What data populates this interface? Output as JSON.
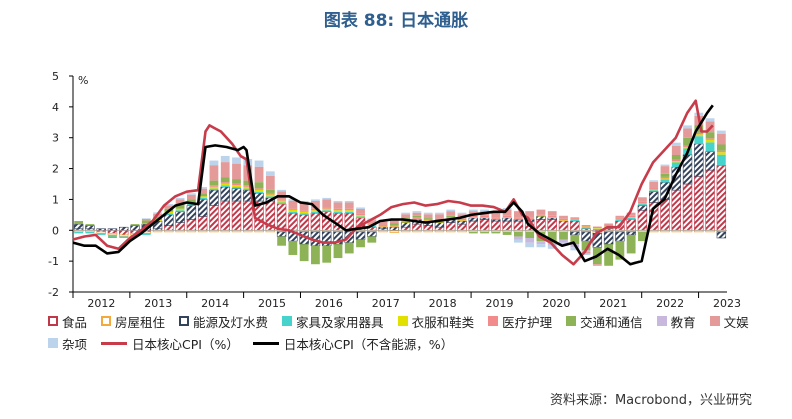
{
  "title": "图表 88: 日本通胀",
  "source": "资料来源：Macrobond，兴业研究",
  "chart_data": {
    "type": "bar",
    "stacked": true,
    "y_unit_label": "%",
    "ylim": [
      -2,
      5
    ],
    "yticks": [
      -2,
      -1,
      0,
      1,
      2,
      3,
      4,
      5
    ],
    "x_tick_labels": [
      "2012",
      "2013",
      "2014",
      "2015",
      "2016",
      "2017",
      "2018",
      "2019",
      "2020",
      "2021",
      "2022",
      "2023"
    ],
    "grid": false,
    "legend_position": "bottom",
    "series": [
      {
        "name": "食品",
        "color": "#c0394b",
        "style": "hatched",
        "values": [
          0.05,
          0.05,
          -0.05,
          -0.1,
          -0.15,
          -0.1,
          -0.05,
          0.05,
          0.15,
          0.25,
          0.35,
          0.45,
          0.8,
          0.95,
          0.95,
          0.95,
          0.95,
          0.95,
          0.85,
          0.55,
          0.5,
          0.55,
          0.6,
          0.55,
          0.55,
          0.4,
          0.1,
          0.05,
          -0.02,
          0.1,
          0.2,
          0.15,
          0.1,
          0.25,
          0.2,
          0.3,
          0.35,
          0.3,
          0.3,
          0.3,
          0.3,
          0.35,
          0.35,
          0.3,
          0.3,
          0.05,
          -0.05,
          0.05,
          0.3,
          0.35,
          0.65,
          0.9,
          1.0,
          1.3,
          1.5,
          1.75,
          1.95,
          2.1
        ]
      },
      {
        "name": "房屋租住",
        "color": "#f4a93c",
        "style": "outline",
        "values": [
          -0.05,
          -0.05,
          -0.05,
          -0.05,
          -0.05,
          -0.05,
          -0.05,
          -0.05,
          -0.05,
          -0.05,
          -0.05,
          -0.05,
          -0.05,
          -0.05,
          -0.05,
          -0.05,
          -0.05,
          -0.05,
          -0.05,
          -0.05,
          -0.05,
          -0.05,
          -0.05,
          -0.05,
          -0.05,
          -0.05,
          -0.05,
          -0.05,
          -0.05,
          -0.05,
          -0.05,
          -0.05,
          -0.05,
          -0.05,
          -0.05,
          -0.05,
          -0.05,
          -0.05,
          -0.05,
          -0.05,
          -0.05,
          -0.05,
          -0.05,
          -0.05,
          -0.05,
          -0.05,
          -0.05,
          -0.05,
          -0.05,
          -0.05,
          -0.05,
          -0.05,
          -0.05,
          -0.05,
          -0.05,
          -0.05,
          -0.05,
          -0.05
        ]
      },
      {
        "name": "能源及灯水费",
        "color": "#33435c",
        "style": "hatched",
        "values": [
          0.15,
          0.1,
          0.05,
          0.05,
          0.1,
          0.15,
          0.2,
          0.25,
          0.35,
          0.35,
          0.45,
          0.55,
          0.5,
          0.45,
          0.4,
          0.35,
          0.25,
          0.1,
          -0.15,
          -0.3,
          -0.4,
          -0.45,
          -0.45,
          -0.4,
          -0.35,
          -0.25,
          -0.15,
          0.05,
          0.1,
          0.15,
          0.15,
          0.15,
          0.15,
          0.1,
          0.1,
          0.1,
          0.05,
          0.05,
          0.1,
          0.05,
          0.05,
          0.1,
          0.05,
          0.0,
          -0.1,
          -0.3,
          -0.45,
          -0.4,
          -0.3,
          -0.1,
          0.15,
          0.35,
          0.55,
          0.75,
          0.95,
          1.05,
          0.6,
          -0.2
        ]
      },
      {
        "name": "家具及家用器具",
        "color": "#46d3cb",
        "style": "solid",
        "values": [
          -0.05,
          -0.05,
          -0.05,
          -0.05,
          -0.05,
          -0.05,
          -0.05,
          0.0,
          0.05,
          0.05,
          0.05,
          0.05,
          0.05,
          0.05,
          0.05,
          0.05,
          0.05,
          0.05,
          0.05,
          0.05,
          0.05,
          0.05,
          0.05,
          0.05,
          0.05,
          0.05,
          0.05,
          0.0,
          0.0,
          0.0,
          0.0,
          0.0,
          0.0,
          0.0,
          0.0,
          0.0,
          0.0,
          0.0,
          0.0,
          0.0,
          0.0,
          0.0,
          0.0,
          0.0,
          0.05,
          0.05,
          0.05,
          0.05,
          0.05,
          0.05,
          0.05,
          0.05,
          0.1,
          0.15,
          0.2,
          0.25,
          0.3,
          0.35
        ]
      },
      {
        "name": "衣服和鞋类",
        "color": "#e2e000",
        "style": "solid",
        "values": [
          0.0,
          0.0,
          0.0,
          0.0,
          0.0,
          0.0,
          0.02,
          0.03,
          0.05,
          0.05,
          0.05,
          0.05,
          0.06,
          0.06,
          0.06,
          0.06,
          0.06,
          0.06,
          0.06,
          0.06,
          0.05,
          0.05,
          0.05,
          0.05,
          0.05,
          0.04,
          0.03,
          0.02,
          0.02,
          0.02,
          0.02,
          0.02,
          0.02,
          0.02,
          0.02,
          0.02,
          0.02,
          0.02,
          0.02,
          0.02,
          0.02,
          0.02,
          0.02,
          0.02,
          0.02,
          0.02,
          0.02,
          0.02,
          0.02,
          0.02,
          0.02,
          0.02,
          0.03,
          0.04,
          0.05,
          0.06,
          0.08,
          0.08
        ]
      },
      {
        "name": "医疗护理",
        "color": "#f28c8c",
        "style": "solid",
        "values": [
          0.0,
          0.0,
          0.0,
          0.0,
          0.0,
          0.0,
          0.0,
          0.0,
          0.0,
          0.0,
          0.0,
          0.0,
          0.05,
          0.05,
          0.05,
          0.05,
          0.05,
          0.05,
          0.05,
          0.05,
          0.05,
          0.05,
          0.05,
          0.05,
          0.05,
          0.05,
          0.05,
          0.05,
          0.05,
          0.05,
          0.05,
          0.05,
          0.05,
          0.05,
          0.05,
          0.05,
          0.05,
          0.05,
          0.05,
          0.05,
          0.05,
          0.05,
          0.05,
          0.05,
          0.05,
          0.05,
          0.05,
          0.05,
          0.05,
          0.05,
          0.05,
          0.05,
          0.05,
          0.05,
          0.05,
          0.05,
          0.05,
          0.05
        ]
      },
      {
        "name": "交通和通信",
        "color": "#8db356",
        "style": "solid",
        "values": [
          0.1,
          0.05,
          0.0,
          -0.05,
          0.0,
          0.05,
          0.1,
          0.1,
          0.1,
          0.15,
          0.1,
          0.1,
          0.15,
          0.15,
          0.15,
          0.15,
          0.2,
          0.1,
          -0.3,
          -0.45,
          -0.55,
          -0.6,
          -0.55,
          -0.45,
          -0.35,
          -0.25,
          -0.2,
          0.0,
          0.05,
          0.1,
          0.05,
          0.05,
          0.05,
          0.05,
          0.0,
          -0.05,
          -0.05,
          -0.05,
          -0.1,
          -0.15,
          -0.2,
          -0.3,
          -0.35,
          -0.25,
          -0.3,
          -0.3,
          -0.55,
          -0.7,
          -0.6,
          -0.6,
          -0.3,
          0.0,
          0.1,
          0.15,
          0.25,
          0.25,
          0.2,
          0.2
        ]
      },
      {
        "name": "教育",
        "color": "#c9b8dd",
        "style": "solid",
        "values": [
          0.0,
          0.0,
          0.0,
          0.0,
          0.0,
          0.0,
          0.0,
          0.0,
          0.0,
          0.0,
          0.0,
          0.0,
          0.0,
          0.0,
          0.0,
          0.0,
          0.0,
          0.0,
          0.0,
          0.0,
          0.0,
          0.0,
          0.0,
          0.0,
          0.0,
          0.0,
          0.0,
          0.0,
          0.0,
          0.0,
          0.0,
          0.0,
          0.0,
          0.0,
          0.0,
          0.0,
          0.0,
          0.0,
          0.0,
          -0.1,
          -0.15,
          -0.1,
          -0.1,
          -0.1,
          -0.1,
          -0.05,
          0.0,
          0.0,
          0.0,
          0.0,
          0.0,
          0.0,
          0.0,
          0.0,
          0.0,
          0.0,
          0.0,
          0.0
        ]
      },
      {
        "name": "文娱",
        "color": "#e59a9a",
        "style": "solid",
        "values": [
          0.0,
          0.0,
          0.0,
          0.0,
          0.0,
          0.0,
          0.05,
          0.1,
          0.1,
          0.15,
          0.15,
          0.15,
          0.5,
          0.5,
          0.5,
          0.5,
          0.5,
          0.45,
          0.25,
          0.25,
          0.25,
          0.25,
          0.25,
          0.2,
          0.2,
          0.15,
          0.1,
          0.1,
          0.1,
          0.1,
          0.1,
          0.1,
          0.15,
          0.15,
          0.15,
          0.15,
          0.15,
          0.15,
          0.2,
          0.2,
          0.2,
          0.15,
          0.15,
          0.1,
          0.0,
          -0.05,
          -0.05,
          0.05,
          0.05,
          0.1,
          0.15,
          0.2,
          0.25,
          0.3,
          0.3,
          0.3,
          0.35,
          0.35
        ]
      },
      {
        "name": "杂项",
        "color": "#bcd3ec",
        "style": "solid",
        "values": [
          0.0,
          0.0,
          0.0,
          0.0,
          0.0,
          0.0,
          0.02,
          0.05,
          0.05,
          0.05,
          0.05,
          0.05,
          0.15,
          0.2,
          0.2,
          0.2,
          0.2,
          0.15,
          0.05,
          0.05,
          0.05,
          0.05,
          0.05,
          0.05,
          0.05,
          0.05,
          0.05,
          0.05,
          0.05,
          0.05,
          0.05,
          0.05,
          0.05,
          0.05,
          0.05,
          0.05,
          0.05,
          0.05,
          0.05,
          -0.1,
          -0.15,
          -0.1,
          -0.1,
          -0.1,
          -0.1,
          -0.05,
          0.0,
          0.0,
          0.0,
          0.0,
          0.0,
          0.05,
          0.05,
          0.1,
          0.1,
          0.1,
          0.1,
          0.1
        ]
      }
    ],
    "lines": [
      {
        "name": "日本核心CPI（%）",
        "color": "#c73b4a",
        "x": [
          2012.0,
          2012.2,
          2012.4,
          2012.6,
          2012.8,
          2013.0,
          2013.2,
          2013.4,
          2013.6,
          2013.8,
          2014.0,
          2014.2,
          2014.33,
          2014.4,
          2014.5,
          2014.6,
          2014.8,
          2014.95,
          2015.05,
          2015.2,
          2015.4,
          2015.6,
          2015.8,
          2016.0,
          2016.2,
          2016.4,
          2016.6,
          2016.8,
          2017.0,
          2017.2,
          2017.4,
          2017.6,
          2017.8,
          2018.0,
          2018.2,
          2018.4,
          2018.6,
          2018.8,
          2019.0,
          2019.2,
          2019.4,
          2019.6,
          2019.75,
          2019.9,
          2020.0,
          2020.2,
          2020.4,
          2020.6,
          2020.8,
          2021.0,
          2021.2,
          2021.4,
          2021.6,
          2021.8,
          2022.0,
          2022.2,
          2022.4,
          2022.6,
          2022.8,
          2022.95,
          2023.05,
          2023.15,
          2023.25
        ],
        "y": [
          -0.3,
          -0.2,
          -0.15,
          -0.5,
          -0.6,
          -0.25,
          0.0,
          0.3,
          0.8,
          1.1,
          1.25,
          1.3,
          3.2,
          3.4,
          3.3,
          3.2,
          2.8,
          2.4,
          2.3,
          0.4,
          0.2,
          0.05,
          0.0,
          -0.15,
          -0.3,
          -0.4,
          -0.4,
          -0.3,
          0.1,
          0.3,
          0.5,
          0.75,
          0.85,
          0.9,
          0.8,
          0.85,
          0.95,
          0.9,
          0.8,
          0.8,
          0.75,
          0.6,
          1.0,
          0.5,
          0.4,
          -0.2,
          -0.4,
          -0.8,
          -1.1,
          -0.7,
          -0.1,
          0.1,
          0.1,
          0.6,
          1.5,
          2.2,
          2.6,
          3.0,
          3.8,
          4.2,
          3.2,
          3.2,
          3.4
        ]
      },
      {
        "name": "日本核心CPI（不含能源，%）",
        "color": "#000000",
        "x": [
          2012.0,
          2012.2,
          2012.4,
          2012.6,
          2012.8,
          2013.0,
          2013.2,
          2013.4,
          2013.6,
          2013.8,
          2014.0,
          2014.2,
          2014.33,
          2014.5,
          2014.7,
          2014.9,
          2015.0,
          2015.05,
          2015.2,
          2015.4,
          2015.6,
          2015.8,
          2016.0,
          2016.2,
          2016.4,
          2016.6,
          2016.8,
          2017.0,
          2017.2,
          2017.4,
          2017.6,
          2017.8,
          2018.0,
          2018.2,
          2018.4,
          2018.6,
          2018.8,
          2019.0,
          2019.2,
          2019.4,
          2019.6,
          2019.75,
          2019.9,
          2020.0,
          2020.2,
          2020.4,
          2020.6,
          2020.8,
          2021.0,
          2021.2,
          2021.4,
          2021.6,
          2021.8,
          2022.0,
          2022.2,
          2022.4,
          2022.6,
          2022.8,
          2022.95,
          2023.05,
          2023.15,
          2023.25
        ],
        "y": [
          -0.4,
          -0.5,
          -0.5,
          -0.75,
          -0.7,
          -0.35,
          -0.1,
          0.2,
          0.5,
          0.8,
          0.9,
          0.85,
          2.7,
          2.75,
          2.7,
          2.6,
          2.7,
          2.6,
          0.8,
          0.9,
          1.1,
          1.1,
          0.9,
          0.85,
          0.5,
          0.25,
          0.0,
          0.05,
          0.1,
          0.3,
          0.35,
          0.35,
          0.3,
          0.25,
          0.3,
          0.35,
          0.4,
          0.5,
          0.55,
          0.6,
          0.6,
          0.9,
          0.6,
          0.2,
          -0.1,
          -0.3,
          -0.5,
          -0.4,
          -1.0,
          -0.85,
          -0.6,
          -0.8,
          -1.1,
          -1.0,
          0.7,
          1.0,
          1.8,
          2.5,
          3.2,
          3.5,
          3.8,
          4.05
        ]
      }
    ]
  },
  "legend_items": [
    {
      "label": "食品",
      "type": "box",
      "color": "#c0394b",
      "style": "hatched"
    },
    {
      "label": "房屋租住",
      "type": "box",
      "color": "#f4a93c",
      "style": "outline"
    },
    {
      "label": "能源及灯水费",
      "type": "box",
      "color": "#33435c",
      "style": "hatched"
    },
    {
      "label": "家具及家用器具",
      "type": "box",
      "color": "#46d3cb",
      "style": "solid"
    },
    {
      "label": "衣服和鞋类",
      "type": "box",
      "color": "#e2e000",
      "style": "solid"
    },
    {
      "label": "医疗护理",
      "type": "box",
      "color": "#f28c8c",
      "style": "solid"
    },
    {
      "label": "交通和通信",
      "type": "box",
      "color": "#8db356",
      "style": "solid"
    },
    {
      "label": "教育",
      "type": "box",
      "color": "#c9b8dd",
      "style": "solid"
    },
    {
      "label": "文娱",
      "type": "box",
      "color": "#e59a9a",
      "style": "solid"
    },
    {
      "label": "杂项",
      "type": "box",
      "color": "#bcd3ec",
      "style": "solid"
    },
    {
      "label": "日本核心CPI（%）",
      "type": "line",
      "color": "#c73b4a"
    },
    {
      "label": "日本核心CPI（不含能源，%）",
      "type": "line",
      "color": "#000000"
    }
  ]
}
